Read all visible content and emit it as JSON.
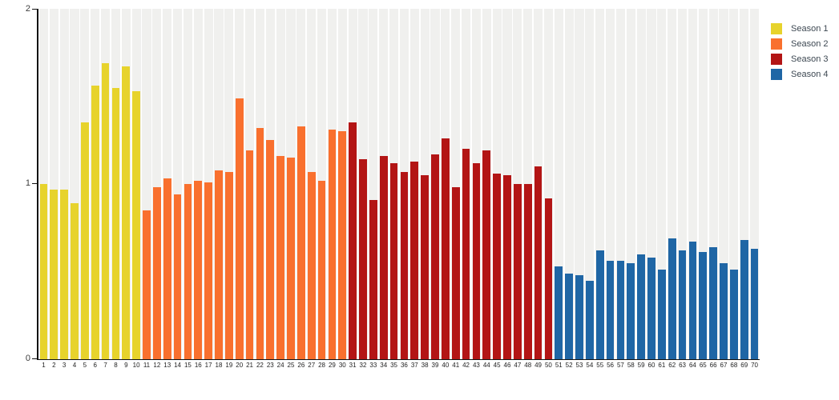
{
  "chart_data": {
    "type": "bar",
    "title": "",
    "xlabel": "",
    "ylabel": "",
    "ylim": [
      0,
      2
    ],
    "yticks": [
      "2",
      "1",
      "0"
    ],
    "grid": "vertical-stripes",
    "legend_position": "top-right",
    "stripe_color": "#f0f0ee",
    "axis_color": "#111111",
    "categories": [
      "1",
      "2",
      "3",
      "4",
      "5",
      "6",
      "7",
      "8",
      "9",
      "10",
      "11",
      "12",
      "13",
      "14",
      "15",
      "16",
      "17",
      "18",
      "19",
      "20",
      "21",
      "22",
      "23",
      "24",
      "25",
      "26",
      "27",
      "28",
      "29",
      "30",
      "31",
      "32",
      "33",
      "34",
      "35",
      "36",
      "37",
      "38",
      "39",
      "40",
      "41",
      "42",
      "43",
      "44",
      "45",
      "46",
      "47",
      "48",
      "49",
      "50",
      "51",
      "52",
      "53",
      "54",
      "55",
      "56",
      "57",
      "58",
      "59",
      "60",
      "61",
      "62",
      "63",
      "64",
      "65",
      "66",
      "67",
      "68",
      "69",
      "70"
    ],
    "series": [
      {
        "name": "Season 1",
        "color": "#e7d32c",
        "start_category": "1",
        "values": [
          1.0,
          0.97,
          0.97,
          0.89,
          1.35,
          1.56,
          1.69,
          1.55,
          1.67,
          1.53
        ]
      },
      {
        "name": "Season 2",
        "color": "#f9702e",
        "start_category": "11",
        "values": [
          0.85,
          0.98,
          1.03,
          0.94,
          1.0,
          1.02,
          1.01,
          1.08,
          1.07,
          1.49,
          1.19,
          1.32,
          1.25,
          1.16,
          1.15,
          1.33,
          1.07,
          1.02,
          1.31,
          1.3
        ]
      },
      {
        "name": "Season 3",
        "color": "#b31515",
        "start_category": "31",
        "values": [
          1.35,
          1.14,
          0.91,
          1.16,
          1.12,
          1.07,
          1.13,
          1.05,
          1.17,
          1.26,
          0.98,
          1.2,
          1.12,
          1.19,
          1.06,
          1.05,
          1.0,
          1.0,
          1.1,
          0.92
        ]
      },
      {
        "name": "Season 4",
        "color": "#1f66a5",
        "start_category": "51",
        "values": [
          0.53,
          0.49,
          0.48,
          0.45,
          0.62,
          0.56,
          0.56,
          0.55,
          0.6,
          0.58,
          0.51,
          0.69,
          0.62,
          0.67,
          0.61,
          0.64,
          0.55,
          0.51,
          0.68,
          0.63
        ]
      }
    ]
  }
}
